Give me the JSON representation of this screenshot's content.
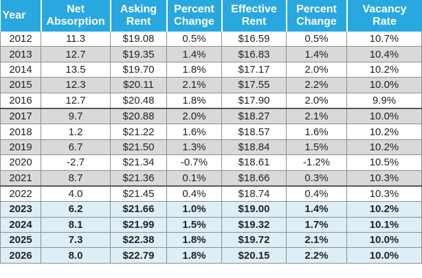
{
  "headers": {
    "year": "Year",
    "net_absorption": [
      "Net",
      "Absorption"
    ],
    "asking_rent": [
      "Asking",
      "Rent"
    ],
    "percent_change_asking": [
      "Percent",
      "Change"
    ],
    "effective_rent": [
      "Effective",
      "Rent"
    ],
    "percent_change_effective": [
      "Percent",
      "Change"
    ],
    "vacancy_rate": [
      "Vacancy",
      "Rate"
    ]
  },
  "rows": [
    {
      "year": "2012",
      "net_absorption": "11.3",
      "asking_rent": "$19.08",
      "asking_change": "0.5%",
      "effective_rent": "$16.59",
      "effective_change": "0.5%",
      "vacancy_rate": "10.7%"
    },
    {
      "year": "2013",
      "net_absorption": "12.7",
      "asking_rent": "$19.35",
      "asking_change": "1.4%",
      "effective_rent": "$16.83",
      "effective_change": "1.4%",
      "vacancy_rate": "10.4%"
    },
    {
      "year": "2014",
      "net_absorption": "13.5",
      "asking_rent": "$19.70",
      "asking_change": "1.8%",
      "effective_rent": "$17.17",
      "effective_change": "2.0%",
      "vacancy_rate": "10.2%"
    },
    {
      "year": "2015",
      "net_absorption": "12.3",
      "asking_rent": "$20.11",
      "asking_change": "2.1%",
      "effective_rent": "$17.55",
      "effective_change": "2.2%",
      "vacancy_rate": "10.0%"
    },
    {
      "year": "2016",
      "net_absorption": "12.7",
      "asking_rent": "$20.48",
      "asking_change": "1.8%",
      "effective_rent": "$17.90",
      "effective_change": "2.0%",
      "vacancy_rate": "9.9%"
    },
    {
      "year": "2017",
      "net_absorption": "9.7",
      "asking_rent": "$20.88",
      "asking_change": "2.0%",
      "effective_rent": "$18.27",
      "effective_change": "2.1%",
      "vacancy_rate": "10.0%"
    },
    {
      "year": "2018",
      "net_absorption": "1.2",
      "asking_rent": "$21.22",
      "asking_change": "1.6%",
      "effective_rent": "$18.57",
      "effective_change": "1.6%",
      "vacancy_rate": "10.2%"
    },
    {
      "year": "2019",
      "net_absorption": "6.7",
      "asking_rent": "$21.50",
      "asking_change": "1.3%",
      "effective_rent": "$18.84",
      "effective_change": "1.5%",
      "vacancy_rate": "10.2%"
    },
    {
      "year": "2020",
      "net_absorption": "-2.7",
      "asking_rent": "$21.34",
      "asking_change": "-0.7%",
      "effective_rent": "$18.61",
      "effective_change": "-1.2%",
      "vacancy_rate": "10.5%"
    },
    {
      "year": "2021",
      "net_absorption": "8.7",
      "asking_rent": "$21.36",
      "asking_change": "0.1%",
      "effective_rent": "$18.66",
      "effective_change": "0.3%",
      "vacancy_rate": "10.3%"
    },
    {
      "year": "2022",
      "net_absorption": "4.0",
      "asking_rent": "$21.45",
      "asking_change": "0.4%",
      "effective_rent": "$18.74",
      "effective_change": "0.4%",
      "vacancy_rate": "10.3%"
    },
    {
      "year": "2023",
      "net_absorption": "6.2",
      "asking_rent": "$21.66",
      "asking_change": "1.0%",
      "effective_rent": "$19.00",
      "effective_change": "1.4%",
      "vacancy_rate": "10.2%"
    },
    {
      "year": "2024",
      "net_absorption": "8.1",
      "asking_rent": "$21.99",
      "asking_change": "1.5%",
      "effective_rent": "$19.32",
      "effective_change": "1.7%",
      "vacancy_rate": "10.1%"
    },
    {
      "year": "2025",
      "net_absorption": "7.3",
      "asking_rent": "$22.38",
      "asking_change": "1.8%",
      "effective_rent": "$19.72",
      "effective_change": "2.1%",
      "vacancy_rate": "10.0%"
    },
    {
      "year": "2026",
      "net_absorption": "8.0",
      "asking_rent": "$22.79",
      "asking_change": "1.8%",
      "effective_rent": "$20.15",
      "effective_change": "2.2%",
      "vacancy_rate": "10.0%"
    }
  ],
  "colors": {
    "header_bg": "#29a8e0",
    "header_text": "#ffffff",
    "shaded_row": "#d9d9d9",
    "forecast_row": "#ddeef8"
  }
}
